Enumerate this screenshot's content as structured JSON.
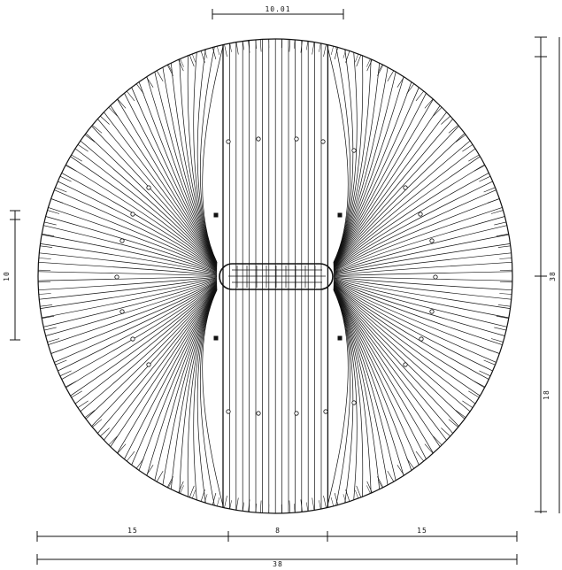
{
  "drawing": {
    "ink_color": "#111111",
    "paper_color": "#ffffff"
  },
  "dimensions": {
    "top": "10.01",
    "left_small": "10",
    "right_total": "38",
    "right_lower": "18",
    "bottom_left": "15",
    "bottom_mid": "8",
    "bottom_right": "15",
    "bottom_total": "38"
  }
}
